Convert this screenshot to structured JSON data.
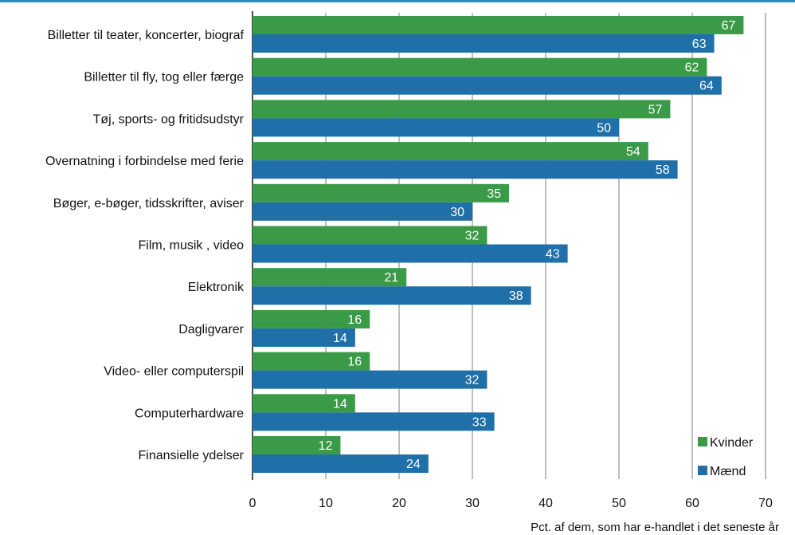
{
  "chart_data": {
    "type": "bar",
    "orientation": "horizontal",
    "categories": [
      "Billetter til teater, koncerter, biograf",
      "Billetter til fly, tog eller færge",
      "Tøj, sports- og fritidsudstyr",
      "Overnatning i forbindelse med ferie",
      "Bøger, e-bøger, tidsskrifter, aviser",
      "Film, musik , video",
      "Elektronik",
      "Dagligvarer",
      "Video- eller computerspil",
      "Computerhardware",
      "Finansielle ydelser"
    ],
    "series": [
      {
        "name": "Kvinder",
        "color": "#3a9a47",
        "values": [
          67,
          62,
          57,
          54,
          35,
          32,
          21,
          16,
          16,
          14,
          12
        ]
      },
      {
        "name": "Mænd",
        "color": "#1f6fa8",
        "values": [
          63,
          64,
          50,
          58,
          30,
          43,
          38,
          14,
          32,
          33,
          24
        ]
      }
    ],
    "xlim": [
      0,
      70
    ],
    "xticks": [
      0,
      10,
      20,
      30,
      40,
      50,
      60,
      70
    ],
    "xlabel": "Pct. af dem, som har e-handlet i det seneste år",
    "grid": "vertical",
    "legend_position": "bottom-right",
    "accent_color": "#2a8fbf"
  }
}
